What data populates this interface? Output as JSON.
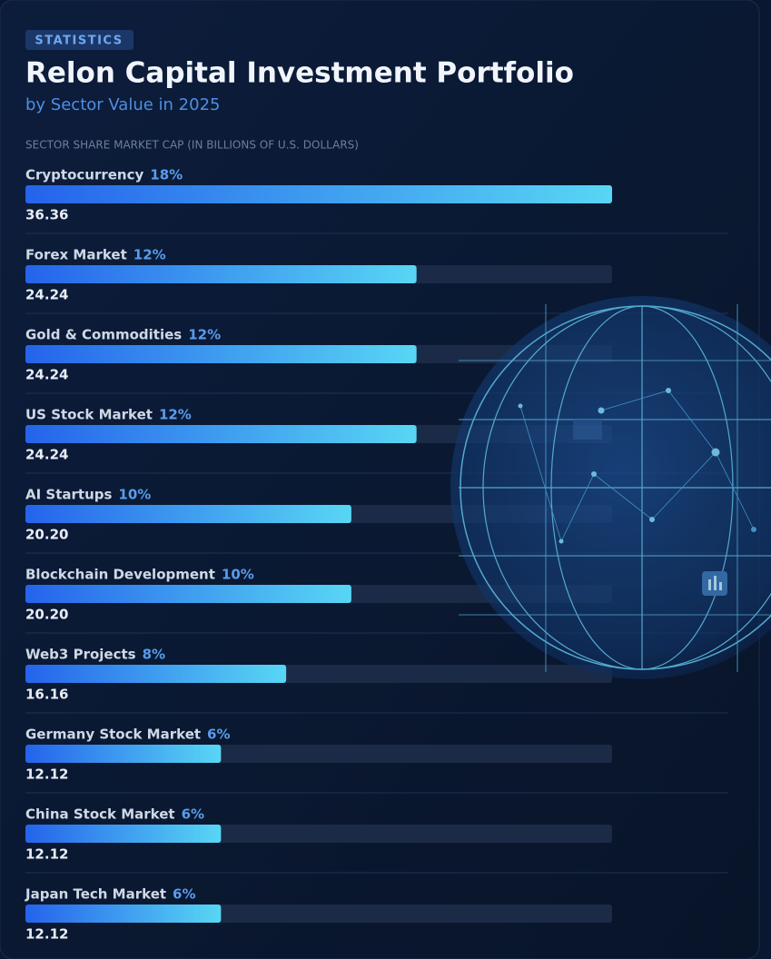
{
  "chart_data": {
    "type": "bar",
    "orientation": "horizontal",
    "badge": "STATISTICS",
    "title": "Relon Capital Investment Portfolio",
    "subtitle": "by Sector Value in 2025",
    "axis_label": "SECTOR SHARE MARKET CAP (IN BILLIONS OF U.S. DOLLARS)",
    "categories": [
      "Cryptocurrency",
      "Forex Market",
      "Gold & Commodities",
      "US Stock Market",
      "AI Startups",
      "Blockchain Development",
      "Web3 Projects",
      "Germany Stock Market",
      "China Stock Market",
      "Japan Tech Market"
    ],
    "values": [
      36.36,
      24.24,
      24.24,
      24.24,
      20.2,
      20.2,
      16.16,
      12.12,
      12.12,
      12.12
    ],
    "value_labels": [
      "36.36",
      "24.24",
      "24.24",
      "24.24",
      "20.20",
      "20.20",
      "16.16",
      "12.12",
      "12.12",
      "12.12"
    ],
    "shares": [
      18,
      12,
      12,
      12,
      10,
      10,
      8,
      6,
      6,
      6
    ],
    "share_labels": [
      "18%",
      "12%",
      "12%",
      "12%",
      "10%",
      "10%",
      "8%",
      "6%",
      "6%",
      "6%"
    ],
    "gradient": [
      "#2563eb",
      "#58d6f4"
    ]
  }
}
